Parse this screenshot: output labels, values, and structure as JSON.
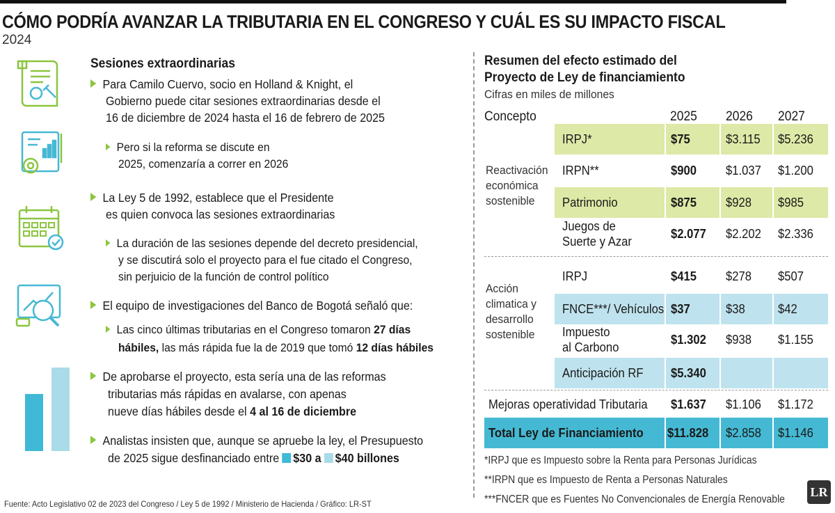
{
  "header": {
    "title": "CÓMO PODRÍA AVANZAR LA TRIBUTARIA EN EL CONGRESO Y CUÁL ES SU IMPACTO FISCAL",
    "year": "2024"
  },
  "left": {
    "heading": "Sesiones extraordinarias",
    "p1_l1": "Para Camilo Cuervo, socio en Holland & Knight, el",
    "p1_l2": "Gobierno puede citar sesiones extraordinarias desde el",
    "p1_l3": "16 de diciembre de 2024 hasta el 16 de febrero de 2025",
    "p1s_l1": "Pero si la reforma se discute en",
    "p1s_l2": "2025, comenzaría a correr en 2026",
    "p2_l1": "La Ley 5 de 1992, establece que el Presidente",
    "p2_l2": "es quien convoca las sesiones extraordinarias",
    "p2s_l1": "La duración de las sesiones depende del decreto presidencial,",
    "p2s_l2": "y se discutirá solo el proyecto para el fue citado el Congreso,",
    "p2s_l3": "sin perjuicio de la función de control político",
    "p3": "El equipo de investigaciones del Banco de Bogotá señaló que:",
    "p3s_l1a": "Las cinco últimas tributarias en el Congreso tomaron ",
    "p3s_l1b": "27 días",
    "p3s_l2a": "hábiles,",
    "p3s_l2b": " las más rápida fue la de 2019 que tomó ",
    "p3s_l2c": "12 días hábiles",
    "p4_l1": "De aprobarse el proyecto, esta sería una de las reformas",
    "p4_l2": "tributarias más rápidas en avalarse, con apenas",
    "p4_l3a": "nueve días hábiles desde el ",
    "p4_l3b": "4 al 16 de diciembre",
    "p5_l1": "Analistas insisten que, aunque se apruebe la ley, el Presupuesto",
    "p5_l2a": "de 2025 sigue desfinanciado entre ",
    "p5_l2b": "$30 a ",
    "p5_l2c": "$40 billones",
    "deficit_range": [
      30,
      40
    ],
    "bar_colors": [
      "#3fb9d6",
      "#a9dbe8"
    ]
  },
  "table": {
    "title_l1": "Resumen del efecto estimado del",
    "title_l2": "Proyecto de Ley de financiamiento",
    "unit": "Cifras en miles de millones",
    "col_concept": "Concepto",
    "years": [
      "2025",
      "2026",
      "2027"
    ],
    "group1_l1": "Reactivación",
    "group1_l2": "económica",
    "group1_l3": "sostenible",
    "group2_l1": "Acción",
    "group2_l2": "climatica y",
    "group2_l3": "desarrollo",
    "group2_l4": "sostenible",
    "rows": [
      {
        "concept": "IRPJ*",
        "v2025": "$75",
        "v2026": "$3.115",
        "v2027": "$5.236"
      },
      {
        "concept": "IRPN**",
        "v2025": "$900",
        "v2026": "$1.037",
        "v2027": "$1.200"
      },
      {
        "concept": "Patrimonio",
        "v2025": "$875",
        "v2026": "$928",
        "v2027": "$985"
      },
      {
        "concept_l1": "Juegos de",
        "concept_l2": "Suerte y Azar",
        "v2025": "$2.077",
        "v2026": "$2.202",
        "v2027": "$2.336"
      },
      {
        "concept": "IRPJ",
        "v2025": "$415",
        "v2026": "$278",
        "v2027": "$507"
      },
      {
        "concept": "FNCE***/ Vehículos",
        "v2025": "$37",
        "v2026": "$38",
        "v2027": "$42"
      },
      {
        "concept_l1": "Impuesto",
        "concept_l2": "al Carbono",
        "v2025": "$1.302",
        "v2026": "$938",
        "v2027": "$1.155"
      },
      {
        "concept": "Anticipación RF",
        "v2025": "$5.340",
        "v2026": "",
        "v2027": ""
      },
      {
        "concept": "Mejoras operatividad Tributaria",
        "v2025": "$1.637",
        "v2026": "$1.106",
        "v2027": "$1.172"
      },
      {
        "concept": "Total Ley de Financiamiento",
        "v2025": "$11.828",
        "v2026": "$2.858",
        "v2027": "$1.146"
      }
    ],
    "notes": [
      "*IRPJ que es Impuesto sobre la Renta para Personas Jurídicas",
      "**IRPN que es  Impuesto de Renta a Personas Naturales",
      "***FNCER que es Fuentes No Convencionales de Energía Renovable"
    ]
  },
  "footer": {
    "source": "Fuente: Acto Legislativo 02 de 2023 del Congreso / Ley 5 de 1992 / Ministerio de Hacienda / Gráfico: LR-ST",
    "logo": "LR"
  },
  "colors": {
    "green": "#8bc53f",
    "row_green": "#dde9a6",
    "row_blue": "#bfe3ee",
    "total": "#45b9d3"
  }
}
